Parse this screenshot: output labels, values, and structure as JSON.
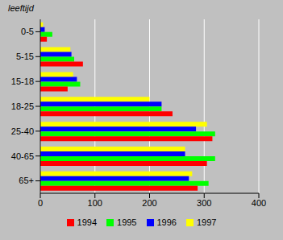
{
  "chart_data": {
    "type": "bar",
    "orientation": "horizontal",
    "ylabel": "leeftijd",
    "categories": [
      "0-5",
      "5-15",
      "15-18",
      "18-25",
      "25-40",
      "40-65",
      "65+"
    ],
    "series": [
      {
        "name": "1994",
        "color": "#ff0000",
        "values": [
          12,
          78,
          50,
          242,
          315,
          305,
          288
        ]
      },
      {
        "name": "1995",
        "color": "#00ff00",
        "values": [
          22,
          62,
          73,
          222,
          320,
          320,
          308
        ]
      },
      {
        "name": "1996",
        "color": "#0000ff",
        "values": [
          8,
          57,
          67,
          222,
          285,
          265,
          272
        ]
      },
      {
        "name": "1997",
        "color": "#ffff00",
        "values": [
          5,
          55,
          60,
          200,
          305,
          265,
          278
        ]
      }
    ],
    "xlim": [
      0,
      400
    ],
    "xticks": [
      0,
      100,
      200,
      300,
      400
    ],
    "grid": true,
    "legend": "bottom"
  }
}
